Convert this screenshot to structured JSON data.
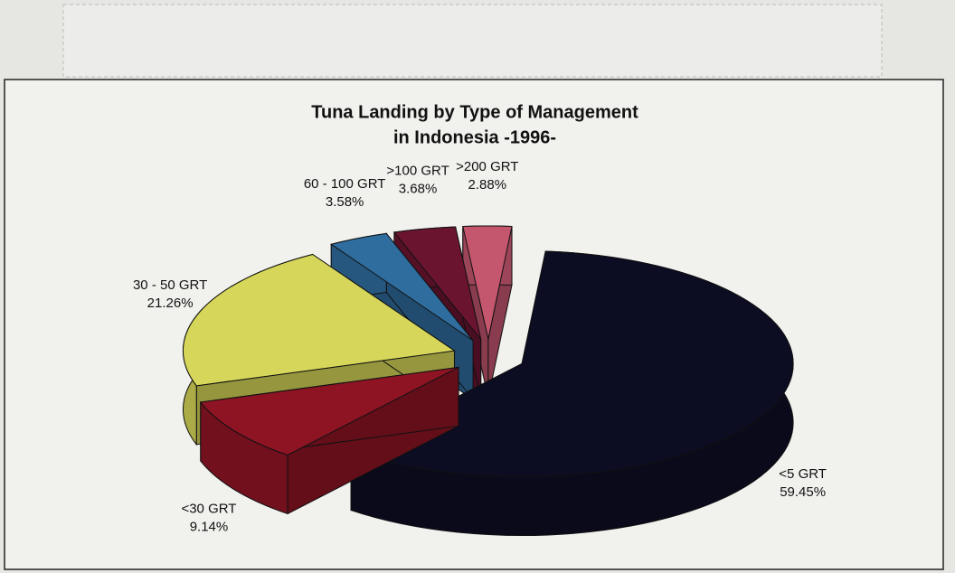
{
  "chart_data": {
    "type": "pie",
    "title": "Tuna Landing by Type of Management",
    "subtitle": "in Indonesia -1996-",
    "categories": [
      "<5 GRT",
      "<30 GRT",
      "30 - 50 GRT",
      "60 - 100 GRT",
      ">100 GRT",
      ">200 GRT"
    ],
    "values": [
      59.45,
      9.14,
      21.26,
      3.58,
      3.68,
      2.88
    ],
    "value_labels": [
      "59.45%",
      "9.14%",
      "21.26%",
      "3.58%",
      "3.68%",
      "2.88%"
    ],
    "colors": [
      "#0c0c22",
      "#8e1424",
      "#d6d65a",
      "#2f6d9e",
      "#6a1430",
      "#c4566e"
    ]
  }
}
